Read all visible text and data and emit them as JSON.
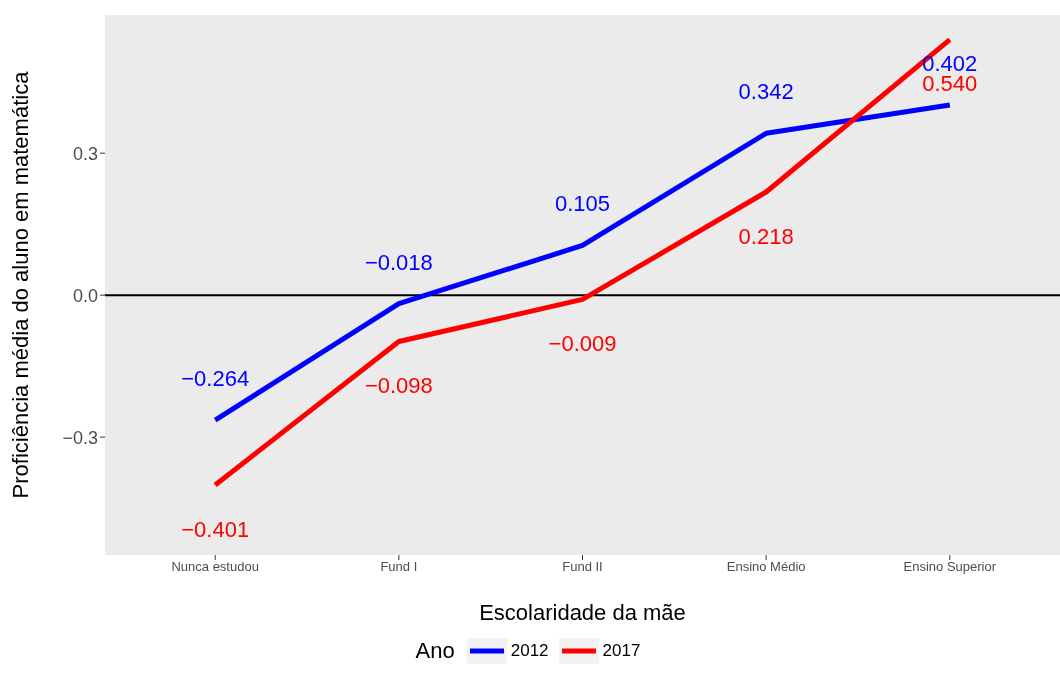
{
  "chart_data": {
    "type": "line",
    "categories": [
      "Nunca estudou",
      "Fund I",
      "Fund II",
      "Ensino Médio",
      "Ensino Superior"
    ],
    "series": [
      {
        "name": "2012",
        "color": "#0000ff",
        "values": [
          -0.264,
          -0.018,
          0.105,
          0.342,
          0.402
        ],
        "value_labels": [
          "−0.264",
          "−0.018",
          "0.105",
          "0.342",
          "0.402"
        ]
      },
      {
        "name": "2017",
        "color": "#ff0000",
        "values": [
          -0.401,
          -0.098,
          -0.009,
          0.218,
          0.54
        ],
        "value_labels": [
          "−0.401",
          "−0.098",
          "−0.009",
          "0.218",
          "0.540"
        ]
      }
    ],
    "xlabel": "Escolaridade da mãe",
    "ylabel": "Proficiência média do aluno em matemática",
    "legend_title": "Ano",
    "legend": "bottom",
    "ylim": [
      -0.549,
      0.592
    ],
    "yticks": [
      {
        "value": -0.3,
        "label": "−0.3"
      },
      {
        "value": 0,
        "label": "0.0"
      },
      {
        "value": 0.3,
        "label": "0.3"
      }
    ],
    "ref_lines": [
      {
        "axis": "y",
        "value": 0,
        "color": "#000000"
      }
    ],
    "grid": false,
    "marker": "none",
    "line_style": "solid"
  }
}
